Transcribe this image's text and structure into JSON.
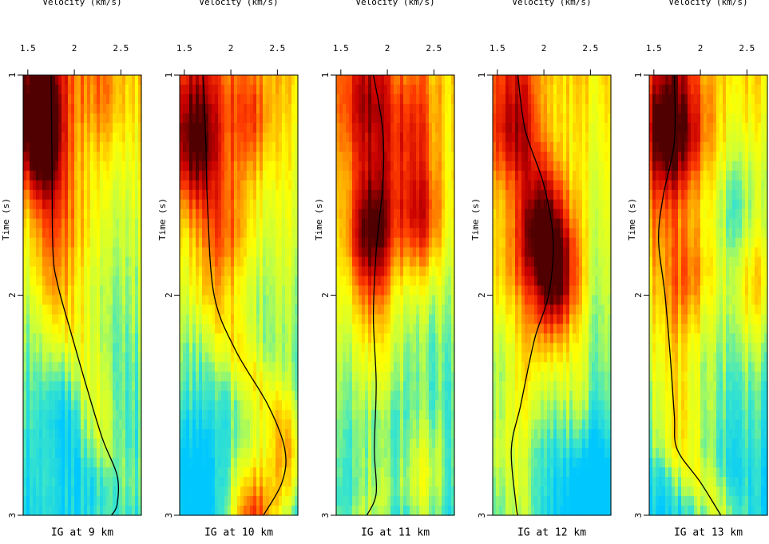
{
  "figure": {
    "panels": [
      {
        "caption": "IG at 9 km"
      },
      {
        "caption": "IG at 10 km"
      },
      {
        "caption": "IG at 11 km"
      },
      {
        "caption": "IG at 12 km"
      },
      {
        "caption": "IG at 13 km"
      }
    ]
  },
  "chart_data": {
    "type": "heatmap",
    "description_units": "velocity semblance panels with picked velocity curve",
    "xlabel": "Velocity (km/s)",
    "ylabel": "Time (s)",
    "x_ticks": [
      "1.5",
      "2",
      "2.5"
    ],
    "y_ticks": [
      "1",
      "2",
      "3"
    ],
    "xlim": [
      1.45,
      2.72
    ],
    "ylim": [
      1,
      3
    ],
    "y_inverted": true,
    "colormap": [
      "#00c8ff",
      "#3ce6c8",
      "#c8ff3c",
      "#ffff00",
      "#ffa500",
      "#ff3c00",
      "#c80000",
      "#500000"
    ],
    "panels": [
      {
        "name": "IG at 9 km",
        "curve": [
          [
            1.75,
            1.0
          ],
          [
            1.76,
            1.4
          ],
          [
            1.77,
            1.8
          ],
          [
            1.82,
            1.95
          ],
          [
            1.95,
            2.15
          ],
          [
            2.12,
            2.4
          ],
          [
            2.3,
            2.65
          ],
          [
            2.46,
            2.82
          ],
          [
            2.46,
            2.95
          ],
          [
            2.4,
            3.0
          ]
        ],
        "blobs": [
          [
            1.62,
            1.3,
            0.9
          ],
          [
            1.55,
            1.1,
            0.6
          ],
          [
            2.3,
            1.1,
            0.35
          ],
          [
            2.0,
            1.7,
            0.25
          ],
          [
            2.4,
            2.9,
            -0.25
          ],
          [
            1.9,
            2.5,
            -0.35
          ]
        ]
      },
      {
        "name": "IG at 10 km",
        "curve": [
          [
            1.7,
            1.0
          ],
          [
            1.73,
            1.3
          ],
          [
            1.75,
            1.6
          ],
          [
            1.82,
            2.0
          ],
          [
            2.05,
            2.25
          ],
          [
            2.4,
            2.5
          ],
          [
            2.58,
            2.7
          ],
          [
            2.55,
            2.85
          ],
          [
            2.35,
            3.0
          ]
        ],
        "blobs": [
          [
            1.6,
            1.3,
            0.9
          ],
          [
            2.2,
            1.2,
            0.55
          ],
          [
            2.0,
            1.7,
            0.4
          ],
          [
            2.2,
            2.98,
            0.95
          ],
          [
            1.6,
            2.8,
            -0.3
          ],
          [
            2.6,
            2.7,
            0.3
          ]
        ]
      },
      {
        "name": "IG at 11 km",
        "curve": [
          [
            1.85,
            1.0
          ],
          [
            1.95,
            1.25
          ],
          [
            1.95,
            1.5
          ],
          [
            1.88,
            1.8
          ],
          [
            1.85,
            2.1
          ],
          [
            1.88,
            2.4
          ],
          [
            1.86,
            2.7
          ],
          [
            1.88,
            2.9
          ],
          [
            1.78,
            3.0
          ]
        ],
        "blobs": [
          [
            1.8,
            1.72,
            0.95
          ],
          [
            2.35,
            1.65,
            0.9
          ],
          [
            1.7,
            1.2,
            0.55
          ],
          [
            2.3,
            1.2,
            0.5
          ],
          [
            2.4,
            2.85,
            0.55
          ],
          [
            1.9,
            2.6,
            -0.35
          ]
        ]
      },
      {
        "name": "IG at 12 km",
        "curve": [
          [
            1.72,
            1.0
          ],
          [
            1.8,
            1.25
          ],
          [
            2.0,
            1.5
          ],
          [
            2.1,
            1.75
          ],
          [
            2.05,
            2.0
          ],
          [
            1.9,
            2.2
          ],
          [
            1.75,
            2.5
          ],
          [
            1.65,
            2.7
          ],
          [
            1.7,
            2.95
          ],
          [
            1.72,
            3.0
          ]
        ],
        "blobs": [
          [
            1.95,
            1.72,
            0.95
          ],
          [
            2.15,
            1.95,
            0.85
          ],
          [
            1.6,
            1.3,
            0.6
          ],
          [
            1.6,
            1.9,
            0.45
          ],
          [
            2.3,
            2.4,
            0.25
          ],
          [
            2.5,
            2.95,
            -0.6
          ]
        ]
      },
      {
        "name": "IG at 13 km",
        "curve": [
          [
            1.72,
            1.0
          ],
          [
            1.72,
            1.3
          ],
          [
            1.6,
            1.55
          ],
          [
            1.55,
            1.75
          ],
          [
            1.62,
            2.0
          ],
          [
            1.68,
            2.3
          ],
          [
            1.72,
            2.55
          ],
          [
            1.75,
            2.7
          ],
          [
            2.0,
            2.85
          ],
          [
            2.22,
            3.0
          ]
        ],
        "blobs": [
          [
            1.6,
            1.25,
            0.95
          ],
          [
            1.9,
            1.9,
            0.55
          ],
          [
            2.6,
            1.95,
            0.45
          ],
          [
            1.95,
            1.3,
            0.35
          ],
          [
            2.4,
            1.6,
            -0.35
          ],
          [
            1.9,
            2.6,
            0.2
          ]
        ]
      }
    ]
  }
}
